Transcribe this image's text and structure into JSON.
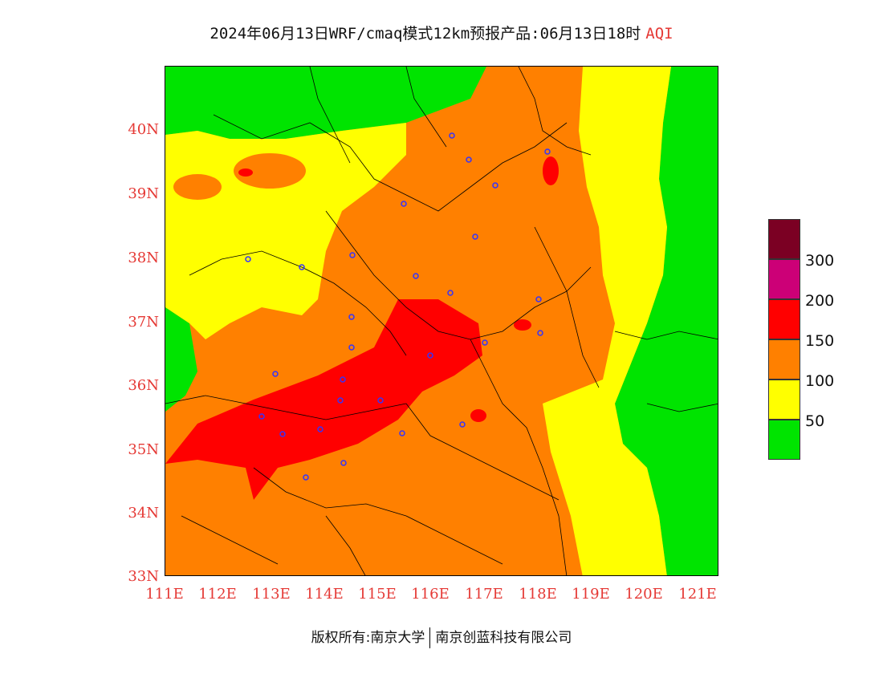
{
  "title": {
    "main": "2024年06月13日WRF/cmaq模式12km预报产品:06月13日18时",
    "product": "AQI"
  },
  "axes": {
    "lat_labels": [
      "40N",
      "39N",
      "38N",
      "37N",
      "36N",
      "35N",
      "34N",
      "33N"
    ],
    "lon_labels": [
      "111E",
      "112E",
      "113E",
      "114E",
      "115E",
      "116E",
      "117E",
      "118E",
      "119E",
      "120E",
      "121E"
    ],
    "lat_range": [
      33,
      41
    ],
    "lon_range": [
      111,
      121.4
    ]
  },
  "legend": {
    "levels": [
      {
        "label": "",
        "color": "#7b0023"
      },
      {
        "label": "300",
        "color": "#cc0077"
      },
      {
        "label": "200",
        "color": "#ff0000"
      },
      {
        "label": "150",
        "color": "#ff8000"
      },
      {
        "label": "100",
        "color": "#ffff00"
      },
      {
        "label": "50",
        "color": "#00e400"
      }
    ]
  },
  "colors": {
    "good": "#00e400",
    "moderate": "#ffff00",
    "usg": "#ff8000",
    "unhealthy": "#ff0000",
    "very_unhealthy": "#cc0077",
    "hazardous": "#7b0023",
    "station": "#3333ff"
  },
  "copyright": {
    "left": "版权所有:南京大学",
    "right": "南京创蓝科技有限公司"
  }
}
